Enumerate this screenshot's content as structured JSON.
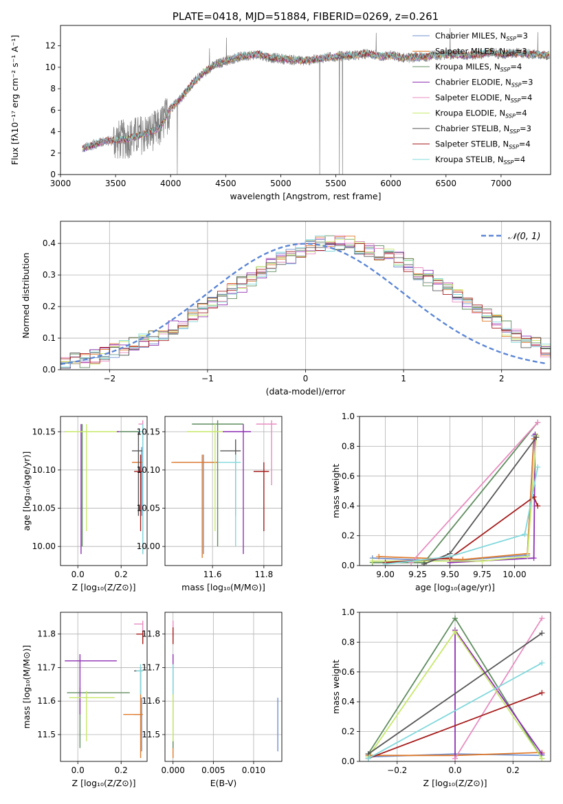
{
  "colors": [
    "#6f8fcf",
    "#e07a2a",
    "#5e8c5e",
    "#8e2fb3",
    "#e88cc0",
    "#c7e86a",
    "#555555",
    "#a61b1b",
    "#80d8dc"
  ],
  "chart_data": [
    {
      "type": "line",
      "title": "PLATE=0418, MJD=51884, FIBERID=0269, z=0.261",
      "xlabel": "wavelength [Angstrom, rest frame]",
      "ylabel": "Flux [fλ10⁻¹⁷ erg cm⁻² s⁻¹ A⁻¹]",
      "xlim": [
        3000,
        7450
      ],
      "ylim": [
        0,
        13.9
      ],
      "xticks": [
        3000,
        3500,
        4000,
        4500,
        5000,
        5500,
        6000,
        6500,
        7000
      ],
      "yticks": [
        0,
        2,
        4,
        6,
        8,
        10,
        12
      ],
      "grid": false,
      "legend_position": "right",
      "legend": [
        {
          "main": "Chabrier MILES, N",
          "sub": "SSP",
          "tail": "=3"
        },
        {
          "main": "Salpeter MILES, N",
          "sub": "SSP",
          "tail": "=3"
        },
        {
          "main": "Kroupa MILES, N",
          "sub": "SSP",
          "tail": "=4"
        },
        {
          "main": "Chabrier ELODIE, N",
          "sub": "SSP",
          "tail": "=3"
        },
        {
          "main": "Salpeter ELODIE, N",
          "sub": "SSP",
          "tail": "=4"
        },
        {
          "main": "Kroupa ELODIE, N",
          "sub": "SSP",
          "tail": "=4"
        },
        {
          "main": "Chabrier STELIB, N",
          "sub": "SSP",
          "tail": "=3"
        },
        {
          "main": "Salpeter STELIB, N",
          "sub": "SSP",
          "tail": "=4"
        },
        {
          "main": "Kroupa STELIB, N",
          "sub": "SSP",
          "tail": "=4"
        }
      ],
      "spectrum_knots": {
        "x": [
          3200,
          3300,
          3400,
          3500,
          3600,
          3700,
          3800,
          3900,
          4000,
          4100,
          4200,
          4300,
          4400,
          4500,
          4600,
          4700,
          4800,
          4900,
          5000,
          5100,
          5200,
          5300,
          5400,
          5500,
          5600,
          5700,
          5800,
          5900,
          6000,
          6100,
          6200,
          6300,
          6400,
          6500,
          6600,
          6700,
          6800,
          6900,
          7000,
          7100,
          7200,
          7300,
          7400
        ],
        "y": [
          2.4,
          2.8,
          3.1,
          3.2,
          3.3,
          3.6,
          3.9,
          4.3,
          6.2,
          7.2,
          8.5,
          9.5,
          10.2,
          10.6,
          10.9,
          11.1,
          11.2,
          10.9,
          10.8,
          10.7,
          10.6,
          10.7,
          10.9,
          11.0,
          11.1,
          11.1,
          11.3,
          11.0,
          11.1,
          10.9,
          10.9,
          11.0,
          11.1,
          11.2,
          11.2,
          11.1,
          11.2,
          11.4,
          11.2,
          11.3,
          11.3,
          11.2,
          11.1
        ]
      }
    },
    {
      "type": "line",
      "xlabel": "(data-model)/error",
      "ylabel": "Normed distribution",
      "xlim": [
        -2.5,
        2.5
      ],
      "ylim": [
        0,
        0.47
      ],
      "xticks": [
        -2,
        -1,
        0,
        1,
        2
      ],
      "yticks": [
        0.0,
        0.1,
        0.2,
        0.3,
        0.4
      ],
      "grid": true,
      "legend_position": "top-right",
      "reference_curve": "N(0,1)",
      "reference_label": "𝒩(0, 1)",
      "step_histograms": {
        "bin_start": -2.5,
        "bin_width": 0.1,
        "base": [
          0.02,
          0.03,
          0.03,
          0.04,
          0.05,
          0.06,
          0.07,
          0.08,
          0.09,
          0.1,
          0.11,
          0.13,
          0.15,
          0.17,
          0.19,
          0.21,
          0.23,
          0.25,
          0.27,
          0.29,
          0.31,
          0.33,
          0.35,
          0.36,
          0.38,
          0.39,
          0.4,
          0.4,
          0.4,
          0.4,
          0.39,
          0.38,
          0.37,
          0.36,
          0.35,
          0.33,
          0.31,
          0.29,
          0.27,
          0.25,
          0.23,
          0.21,
          0.19,
          0.17,
          0.15,
          0.13,
          0.11,
          0.09,
          0.08,
          0.06,
          0.05,
          0.04,
          0.03
        ]
      }
    },
    {
      "type": "scatter",
      "xlabel": "Z [log₁₀(Z/Z⊙)]",
      "ylabel": "age [log₁₀(age/yr)]",
      "xlim": [
        -0.08,
        0.32
      ],
      "ylim": [
        9.975,
        10.17
      ],
      "xticks": [
        0.0,
        0.2
      ],
      "yticks": [
        10.0,
        10.05,
        10.1,
        10.15
      ],
      "grid": true,
      "crosses": [
        {
          "c": 0,
          "x": 0.295,
          "y": 10.11,
          "xe": [
            0.255,
            0.3
          ],
          "ye": [
            10.04,
            10.13
          ]
        },
        {
          "c": 1,
          "x": 0.3,
          "y": 10.11,
          "xe": [
            0.25,
            0.3
          ],
          "ye": [
            9.99,
            10.15
          ]
        },
        {
          "c": 2,
          "x": 0.02,
          "y": 10.15,
          "xe": [
            -0.06,
            0.3
          ],
          "ye": [
            10.0,
            10.16
          ]
        },
        {
          "c": 3,
          "x": 0.015,
          "y": 10.15,
          "xe": [
            -0.06,
            0.19
          ],
          "ye": [
            9.99,
            10.16
          ]
        },
        {
          "c": 4,
          "x": 0.3,
          "y": 10.16,
          "xe": [
            0.28,
            0.3
          ],
          "ye": [
            9.99,
            10.165
          ]
        },
        {
          "c": 5,
          "x": 0.04,
          "y": 10.15,
          "xe": [
            -0.06,
            0.18
          ],
          "ye": [
            10.02,
            10.16
          ]
        },
        {
          "c": 6,
          "x": 0.28,
          "y": 10.125,
          "xe": [
            0.25,
            0.3
          ],
          "ye": [
            10.04,
            10.15
          ]
        },
        {
          "c": 7,
          "x": 0.29,
          "y": 10.098,
          "xe": [
            0.26,
            0.3
          ],
          "ye": [
            10.02,
            10.12
          ]
        },
        {
          "c": 8,
          "x": 0.3,
          "y": 10.15,
          "xe": [
            0.28,
            0.3
          ],
          "ye": [
            9.99,
            10.16
          ]
        }
      ]
    },
    {
      "type": "scatter",
      "xlabel": "mass [log₁₀(M/M⊙)]",
      "xlim": [
        11.415,
        11.87
      ],
      "ylim": [
        9.975,
        10.17
      ],
      "xticks": [
        11.6,
        11.8
      ],
      "yticks": [
        10.0,
        10.05,
        10.1,
        10.15
      ],
      "grid": true,
      "crosses": [
        {
          "c": 0,
          "x": 11.565,
          "y": 10.11,
          "xe": [
            11.45,
            11.62
          ],
          "ye": [
            9.99,
            10.12
          ]
        },
        {
          "c": 1,
          "x": 11.56,
          "y": 10.11,
          "xe": [
            11.44,
            11.63
          ],
          "ye": [
            9.985,
            10.12
          ]
        },
        {
          "c": 2,
          "x": 11.62,
          "y": 10.16,
          "xe": [
            11.52,
            11.72
          ],
          "ye": [
            10.0,
            10.165
          ]
        },
        {
          "c": 3,
          "x": 11.72,
          "y": 10.15,
          "xe": [
            11.6,
            11.75
          ],
          "ye": [
            9.99,
            10.16
          ]
        },
        {
          "c": 4,
          "x": 11.83,
          "y": 10.16,
          "xe": [
            11.77,
            11.85
          ],
          "ye": [
            10.08,
            10.165
          ]
        },
        {
          "c": 5,
          "x": 11.61,
          "y": 10.15,
          "xe": [
            11.5,
            11.64
          ],
          "ye": [
            10.02,
            10.16
          ]
        },
        {
          "c": 6,
          "x": 11.69,
          "y": 10.125,
          "xe": [
            11.63,
            11.71
          ],
          "ye": [
            10.04,
            10.14
          ]
        },
        {
          "c": 7,
          "x": 11.8,
          "y": 10.098,
          "xe": [
            11.76,
            11.82
          ],
          "ye": [
            10.02,
            10.11
          ]
        },
        {
          "c": 8,
          "x": 11.69,
          "y": 10.11,
          "xe": [
            11.62,
            11.71
          ],
          "ye": [
            10.0,
            10.12
          ]
        }
      ]
    },
    {
      "type": "line",
      "xlabel": "age  [log₁₀(age/yr)]",
      "ylabel": "mass weight",
      "xlim": [
        8.8,
        10.28
      ],
      "ylim": [
        0,
        1.0
      ],
      "xticks": [
        9.0,
        9.25,
        9.5,
        9.75,
        10.0
      ],
      "yticks": [
        0.0,
        0.2,
        0.4,
        0.6,
        0.8,
        1.0
      ],
      "grid": true,
      "series": [
        {
          "c": 0,
          "x": [
            8.9,
            9.5,
            10.1,
            10.15
          ],
          "y": [
            0.05,
            0.03,
            0.07,
            0.87
          ]
        },
        {
          "c": 1,
          "x": 8.95,
          "y": 0.06,
          "xs": [
            8.95,
            9.6,
            10.1,
            10.15
          ],
          "ys": [
            0.06,
            0.04,
            0.08,
            0.85
          ]
        },
        {
          "c": 2,
          "x": [
            8.9,
            9.3,
            10.18
          ],
          "y": [
            0.02,
            0.02,
            0.96
          ]
        },
        {
          "c": 3,
          "x": [
            9.5,
            10.15,
            10.16
          ],
          "y": [
            0.02,
            0.05,
            0.88
          ]
        },
        {
          "c": 4,
          "x": [
            9.2,
            10.18
          ],
          "y": [
            0.02,
            0.96
          ]
        },
        {
          "c": 5,
          "x": [
            8.9,
            9.75,
            10.1,
            10.17
          ],
          "y": [
            0.03,
            0.03,
            0.06,
            0.87
          ]
        },
        {
          "c": 6,
          "x": [
            9.3,
            9.5,
            10.17
          ],
          "y": [
            0.01,
            0.08,
            0.86
          ]
        },
        {
          "c": 7,
          "x": [
            9.0,
            9.5,
            10.15,
            10.18
          ],
          "y": [
            0.02,
            0.05,
            0.46,
            0.4
          ]
        },
        {
          "c": 8,
          "x": [
            9.0,
            9.5,
            10.08,
            10.18
          ],
          "y": [
            0.01,
            0.06,
            0.21,
            0.66
          ]
        }
      ]
    },
    {
      "type": "scatter",
      "xlabel": "Z [log₁₀(Z/Z⊙)]",
      "ylabel": "mass [log₁₀(M/M⊙)]",
      "xlim": [
        -0.08,
        0.32
      ],
      "ylim": [
        11.42,
        11.865
      ],
      "xticks": [
        0.0,
        0.2
      ],
      "yticks": [
        11.5,
        11.6,
        11.7,
        11.8
      ],
      "grid": true,
      "crosses": [
        {
          "c": 0,
          "x": 0.295,
          "y": 11.56,
          "xe": [
            0.26,
            0.3
          ],
          "ye": [
            11.45,
            11.61
          ]
        },
        {
          "c": 1,
          "x": 0.29,
          "y": 11.56,
          "xe": [
            0.21,
            0.3
          ],
          "ye": [
            11.43,
            11.62
          ]
        },
        {
          "c": 2,
          "x": 0.01,
          "y": 11.625,
          "xe": [
            -0.05,
            0.24
          ],
          "ye": [
            11.46,
            11.64
          ]
        },
        {
          "c": 3,
          "x": 0.01,
          "y": 11.72,
          "xe": [
            -0.06,
            0.18
          ],
          "ye": [
            11.56,
            11.74
          ]
        },
        {
          "c": 4,
          "x": 0.3,
          "y": 11.83,
          "xe": [
            0.26,
            0.3
          ],
          "ye": [
            11.79,
            11.84
          ]
        },
        {
          "c": 5,
          "x": 0.04,
          "y": 11.61,
          "xe": [
            -0.04,
            0.17
          ],
          "ye": [
            11.48,
            11.63
          ]
        },
        {
          "c": 6,
          "x": 0.29,
          "y": 11.69,
          "xe": [
            0.26,
            0.3
          ],
          "ye": [
            11.62,
            11.7
          ]
        },
        {
          "c": 7,
          "x": 0.3,
          "y": 11.8,
          "xe": [
            0.27,
            0.3
          ],
          "ye": [
            11.77,
            11.81
          ]
        },
        {
          "c": 8,
          "x": 0.29,
          "y": 11.69,
          "xe": [
            0.27,
            0.3
          ],
          "ye": [
            11.62,
            11.71
          ]
        }
      ]
    },
    {
      "type": "scatter",
      "xlabel": "E(B-V)",
      "xlim": [
        -0.001,
        0.0135
      ],
      "ylim": [
        11.42,
        11.865
      ],
      "xticks": [
        0.0,
        0.005,
        0.01
      ],
      "xtick_labels": [
        "0.000",
        "0.005",
        "0.010"
      ],
      "yticks": [
        11.5,
        11.6,
        11.7,
        11.8
      ],
      "grid": true,
      "crosses": [
        {
          "c": 0,
          "x": 0.013,
          "y": 11.55,
          "xe": [
            0.013,
            0.013
          ],
          "ye": [
            11.45,
            11.61
          ]
        },
        {
          "c": 1,
          "x": 0.0,
          "y": 11.56,
          "xe": [
            0.0,
            0.0
          ],
          "ye": [
            11.43,
            11.62
          ]
        },
        {
          "c": 2,
          "x": 0.0,
          "y": 11.62,
          "xe": [
            0.0,
            0.0
          ],
          "ye": [
            11.46,
            11.63
          ]
        },
        {
          "c": 3,
          "x": 0.0,
          "y": 11.72,
          "xe": [
            0.0,
            0.0
          ],
          "ye": [
            11.56,
            11.74
          ]
        },
        {
          "c": 4,
          "x": 0.0,
          "y": 11.83,
          "xe": [
            0.0,
            0.0
          ],
          "ye": [
            11.79,
            11.84
          ]
        },
        {
          "c": 5,
          "x": 0.0,
          "y": 11.61,
          "xe": [
            0.0,
            0.0
          ],
          "ye": [
            11.48,
            11.63
          ]
        },
        {
          "c": 6,
          "x": 0.0,
          "y": 11.69,
          "xe": [
            0.0,
            0.0
          ],
          "ye": [
            11.62,
            11.7
          ]
        },
        {
          "c": 7,
          "x": 0.0,
          "y": 11.8,
          "xe": [
            0.0,
            0.0
          ],
          "ye": [
            11.77,
            11.82
          ]
        },
        {
          "c": 8,
          "x": 0.0,
          "y": 11.69,
          "xe": [
            0.0,
            0.0
          ],
          "ye": [
            11.62,
            11.71
          ]
        }
      ]
    },
    {
      "type": "line",
      "xlabel": "Z [log₁₀(Z/Z⊙)]",
      "ylabel": "mass weight",
      "xlim": [
        -0.33,
        0.33
      ],
      "ylim": [
        0,
        1.0
      ],
      "xticks": [
        -0.2,
        0.0,
        0.2
      ],
      "yticks": [
        0.0,
        0.2,
        0.4,
        0.6,
        0.8,
        1.0
      ],
      "grid": true,
      "series": [
        {
          "c": 0,
          "x": [
            -0.3,
            0.0,
            0.3
          ],
          "y": [
            0.03,
            0.05,
            0.04
          ]
        },
        {
          "c": 1,
          "x": [
            -0.3,
            0.0,
            0.3
          ],
          "y": [
            0.04,
            0.04,
            0.06
          ]
        },
        {
          "c": 2,
          "x": [
            -0.3,
            0.0,
            0.3
          ],
          "y": [
            0.05,
            0.96,
            0.02
          ]
        },
        {
          "c": 3,
          "x": [
            0.0,
            0.0,
            0.3
          ],
          "y": [
            0.02,
            0.88,
            0.05
          ]
        },
        {
          "c": 4,
          "x": [
            0.0,
            0.3
          ],
          "y": [
            0.02,
            0.96
          ]
        },
        {
          "c": 5,
          "x": [
            -0.3,
            0.0,
            0.3
          ],
          "y": [
            0.03,
            0.87,
            0.02
          ]
        },
        {
          "c": 6,
          "x": [
            -0.3,
            0.3
          ],
          "y": [
            0.05,
            0.86
          ]
        },
        {
          "c": 7,
          "x": [
            -0.3,
            0.3
          ],
          "y": [
            0.02,
            0.46
          ]
        },
        {
          "c": 8,
          "x": [
            -0.3,
            0.3
          ],
          "y": [
            0.02,
            0.66
          ]
        }
      ]
    }
  ]
}
